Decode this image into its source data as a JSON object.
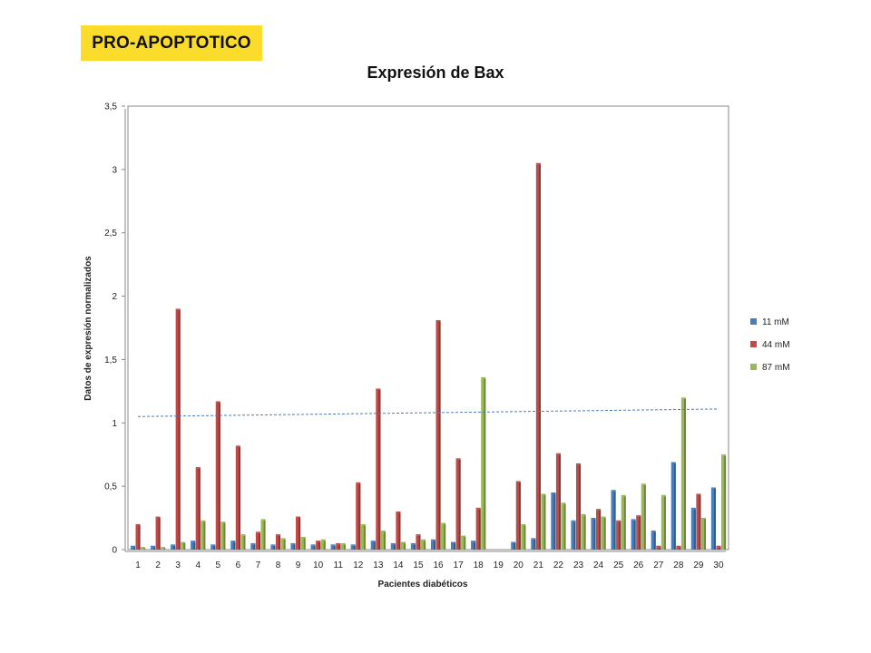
{
  "header": {
    "badge": "PRO-APOPTOTICO"
  },
  "chart_data": {
    "type": "bar",
    "title": "Expresión de Bax",
    "xlabel": "Pacientes diabéticos",
    "ylabel": "Datos de expresión normalizados",
    "ylim": [
      0,
      3.5
    ],
    "yticks": [
      "0",
      "0,5",
      "1",
      "1,5",
      "2",
      "2,5",
      "3",
      "3,5"
    ],
    "categories": [
      "1",
      "2",
      "3",
      "4",
      "5",
      "6",
      "7",
      "8",
      "9",
      "10",
      "11",
      "12",
      "13",
      "14",
      "15",
      "16",
      "17",
      "18",
      "19",
      "20",
      "21",
      "22",
      "23",
      "24",
      "25",
      "26",
      "27",
      "28",
      "29",
      "30"
    ],
    "series": [
      {
        "name": "11 mM",
        "color": "#4a7ebb",
        "values": [
          0.02,
          0.02,
          0.03,
          0.06,
          0.03,
          0.06,
          0.04,
          0.03,
          0.04,
          0.03,
          0.03,
          0.03,
          0.06,
          0.04,
          0.04,
          0.07,
          0.05,
          0.06,
          0,
          0.05,
          0.08,
          0.44,
          0.22,
          0.24,
          0.46,
          0.23,
          0.14,
          0.68,
          0.32,
          0.48
        ]
      },
      {
        "name": "44 mM",
        "color": "#be4b48",
        "values": [
          0.19,
          0.25,
          1.89,
          0.64,
          1.16,
          0.81,
          0.13,
          0.11,
          0.25,
          0.06,
          0.04,
          0.52,
          1.26,
          0.29,
          0.11,
          1.8,
          0.71,
          0.32,
          0,
          0.53,
          3.04,
          0.75,
          0.67,
          0.31,
          0.22,
          0.26,
          0.02,
          0.02,
          0.43,
          0.02
        ]
      },
      {
        "name": "87 mM",
        "color": "#98b954",
        "values": [
          0.01,
          0.01,
          0.05,
          0.22,
          0.21,
          0.11,
          0.23,
          0.08,
          0.09,
          0.07,
          0.04,
          0.19,
          0.14,
          0.05,
          0.07,
          0.2,
          0.1,
          1.35,
          0,
          0.19,
          0.43,
          0.36,
          0.27,
          0.25,
          0.42,
          0.51,
          0.42,
          1.19,
          0.24,
          0.74
        ]
      }
    ],
    "trendline": {
      "style": "dashed",
      "color": "#4a7ebb",
      "start": 1.05,
      "end": 1.11
    },
    "legend": {
      "position": "right"
    },
    "grid": false
  }
}
